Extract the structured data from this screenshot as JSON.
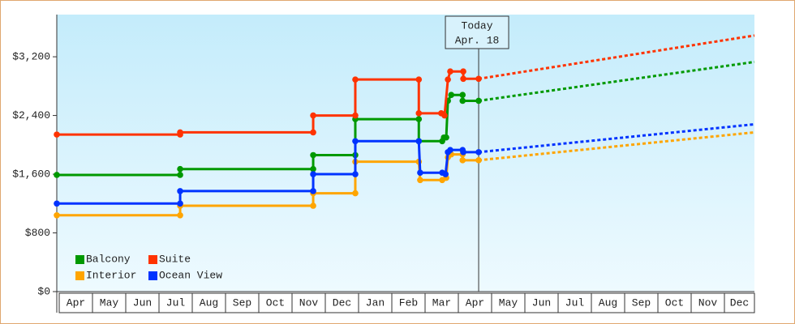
{
  "chart_data": {
    "type": "line",
    "categories": [
      "Apr",
      "May",
      "Jun",
      "Jul",
      "Aug",
      "Sep",
      "Oct",
      "Nov",
      "Dec",
      "Jan",
      "Feb",
      "Mar",
      "Apr",
      "May",
      "Jun",
      "Jul",
      "Aug",
      "Sep",
      "Oct",
      "Nov",
      "Dec"
    ],
    "xlim": [
      0,
      20.87
    ],
    "ylim": [
      0,
      3775
    ],
    "yticks": [
      {
        "value": 0,
        "label": "$0"
      },
      {
        "value": 800,
        "label": "$800"
      },
      {
        "value": 1600,
        "label": "$1,600"
      },
      {
        "value": 2400,
        "label": "$2,400"
      },
      {
        "value": 3200,
        "label": "$3,200"
      }
    ],
    "today": {
      "x": 12.62,
      "label": [
        "Today",
        "Apr. 18"
      ]
    },
    "legend": "bottom-left",
    "series": [
      {
        "name": "Balcony",
        "color": "#009900",
        "x": [
          0,
          3.69,
          3.69,
          7.67,
          7.67,
          8.93,
          8.93,
          10.83,
          10.83,
          11.53,
          11.58,
          11.65,
          11.7,
          11.8,
          12.14,
          12.14,
          12.62
        ],
        "values": [
          1590,
          1590,
          1670,
          1670,
          1860,
          1860,
          2350,
          2350,
          2050,
          2050,
          2100,
          2100,
          2600,
          2680,
          2680,
          2600,
          2600
        ],
        "forecast": {
          "x": [
            12.62,
            20.87
          ],
          "values": [
            2600,
            3130
          ]
        }
      },
      {
        "name": "Suite",
        "color": "#ff3300",
        "x": [
          0,
          3.69,
          3.69,
          7.67,
          7.67,
          8.93,
          8.93,
          10.83,
          10.83,
          11.5,
          11.6,
          11.7,
          11.77,
          12.16,
          12.16,
          12.62
        ],
        "values": [
          2140,
          2140,
          2170,
          2170,
          2400,
          2400,
          2890,
          2890,
          2430,
          2430,
          2400,
          2890,
          3000,
          3000,
          2900,
          2900
        ],
        "forecast": {
          "x": [
            12.62,
            20.87
          ],
          "values": [
            2900,
            3490
          ]
        }
      },
      {
        "name": "Interior",
        "color": "#ffa500",
        "x": [
          0,
          3.69,
          3.69,
          7.67,
          7.67,
          8.93,
          8.93,
          10.83,
          10.87,
          11.53,
          11.65,
          11.7,
          11.8,
          12.14,
          12.14,
          12.62
        ],
        "values": [
          1040,
          1040,
          1170,
          1170,
          1340,
          1340,
          1770,
          1770,
          1520,
          1520,
          1550,
          1830,
          1870,
          1870,
          1790,
          1790
        ],
        "forecast": {
          "x": [
            12.62,
            20.87
          ],
          "values": [
            1790,
            2170
          ]
        }
      },
      {
        "name": "Ocean View",
        "color": "#0033ff",
        "x": [
          0,
          3.69,
          3.69,
          7.67,
          7.67,
          8.93,
          8.93,
          10.83,
          10.87,
          11.53,
          11.63,
          11.7,
          11.77,
          12.14,
          12.16,
          12.62
        ],
        "values": [
          1200,
          1200,
          1370,
          1370,
          1600,
          1600,
          2050,
          2050,
          1620,
          1620,
          1600,
          1900,
          1930,
          1930,
          1900,
          1900
        ],
        "forecast": {
          "x": [
            12.62,
            20.87
          ],
          "values": [
            1900,
            2280
          ]
        }
      }
    ]
  }
}
